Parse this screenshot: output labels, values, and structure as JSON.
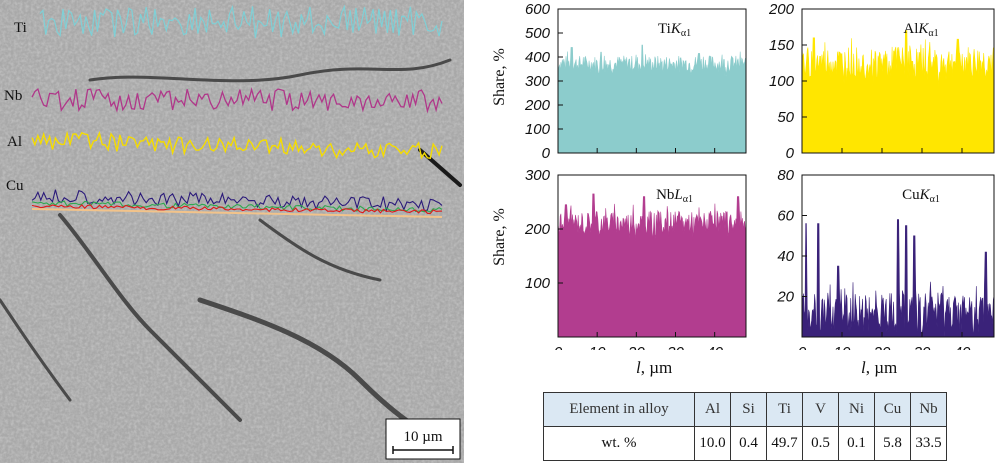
{
  "micrograph": {
    "profile_labels": [
      "Ti",
      "Nb",
      "Al",
      "Cu"
    ],
    "scale_bar": "10 µm",
    "colors": {
      "Ti": "#7fd0d6",
      "Nb": "#b0378a",
      "Al": "#f5dc00",
      "Cu": "#2b1a7a"
    }
  },
  "axis_labels": {
    "share": "Share, %",
    "x_var": "l",
    "x_unit": ", µm"
  },
  "chart_data": [
    {
      "type": "area",
      "element": "Ti",
      "line": "K",
      "subscript": "α1",
      "color": "#8ccccc",
      "xlim": [
        0,
        48
      ],
      "ylim": [
        0,
        600
      ],
      "yticks": [
        0,
        100,
        200,
        300,
        400,
        500,
        600
      ],
      "xticks": [],
      "baseline": 372,
      "spread": 35,
      "peaks": [
        [
          3.5,
          440
        ],
        [
          21.5,
          450
        ],
        [
          11,
          420
        ],
        [
          36,
          415
        ]
      ]
    },
    {
      "type": "area",
      "element": "Al",
      "line": "K",
      "subscript": "α1",
      "color": "#ffe600",
      "xlim": [
        0,
        48
      ],
      "ylim": [
        0,
        200
      ],
      "yticks": [
        0,
        50,
        100,
        150,
        200
      ],
      "xticks": [],
      "baseline": 125,
      "spread": 22,
      "peaks": [
        [
          26,
          170
        ],
        [
          39,
          158
        ],
        [
          3,
          160
        ]
      ]
    },
    {
      "type": "area",
      "element": "Nb",
      "line": "L",
      "subscript": "α1",
      "color": "#b23d8f",
      "xlim": [
        0,
        48
      ],
      "ylim": [
        0,
        300
      ],
      "yticks": [
        100,
        200,
        300
      ],
      "xticks": [
        0,
        10,
        20,
        30,
        40
      ],
      "baseline": 212,
      "spread": 22,
      "peaks": [
        [
          2,
          245
        ],
        [
          9,
          265
        ],
        [
          22,
          260
        ],
        [
          46,
          260
        ]
      ]
    },
    {
      "type": "area",
      "element": "Cu",
      "line": "K",
      "subscript": "α1",
      "color": "#3a2279",
      "xlim": [
        0,
        48
      ],
      "ylim": [
        0,
        80
      ],
      "yticks": [
        20,
        40,
        60,
        80
      ],
      "xticks": [
        0,
        10,
        20,
        30,
        40
      ],
      "baseline": 12,
      "spread": 10,
      "peaks": [
        [
          1,
          56
        ],
        [
          4,
          56
        ],
        [
          24,
          58
        ],
        [
          26,
          55
        ],
        [
          28,
          50
        ],
        [
          9,
          35
        ],
        [
          46,
          42
        ]
      ]
    }
  ],
  "composition_table": {
    "header": [
      "Element in alloy",
      "Al",
      "Si",
      "Ti",
      "V",
      "Ni",
      "Cu",
      "Nb"
    ],
    "row": [
      "wt. %",
      "10.0",
      "0.4",
      "49.7",
      "0.5",
      "0.1",
      "5.8",
      "33.5"
    ]
  }
}
